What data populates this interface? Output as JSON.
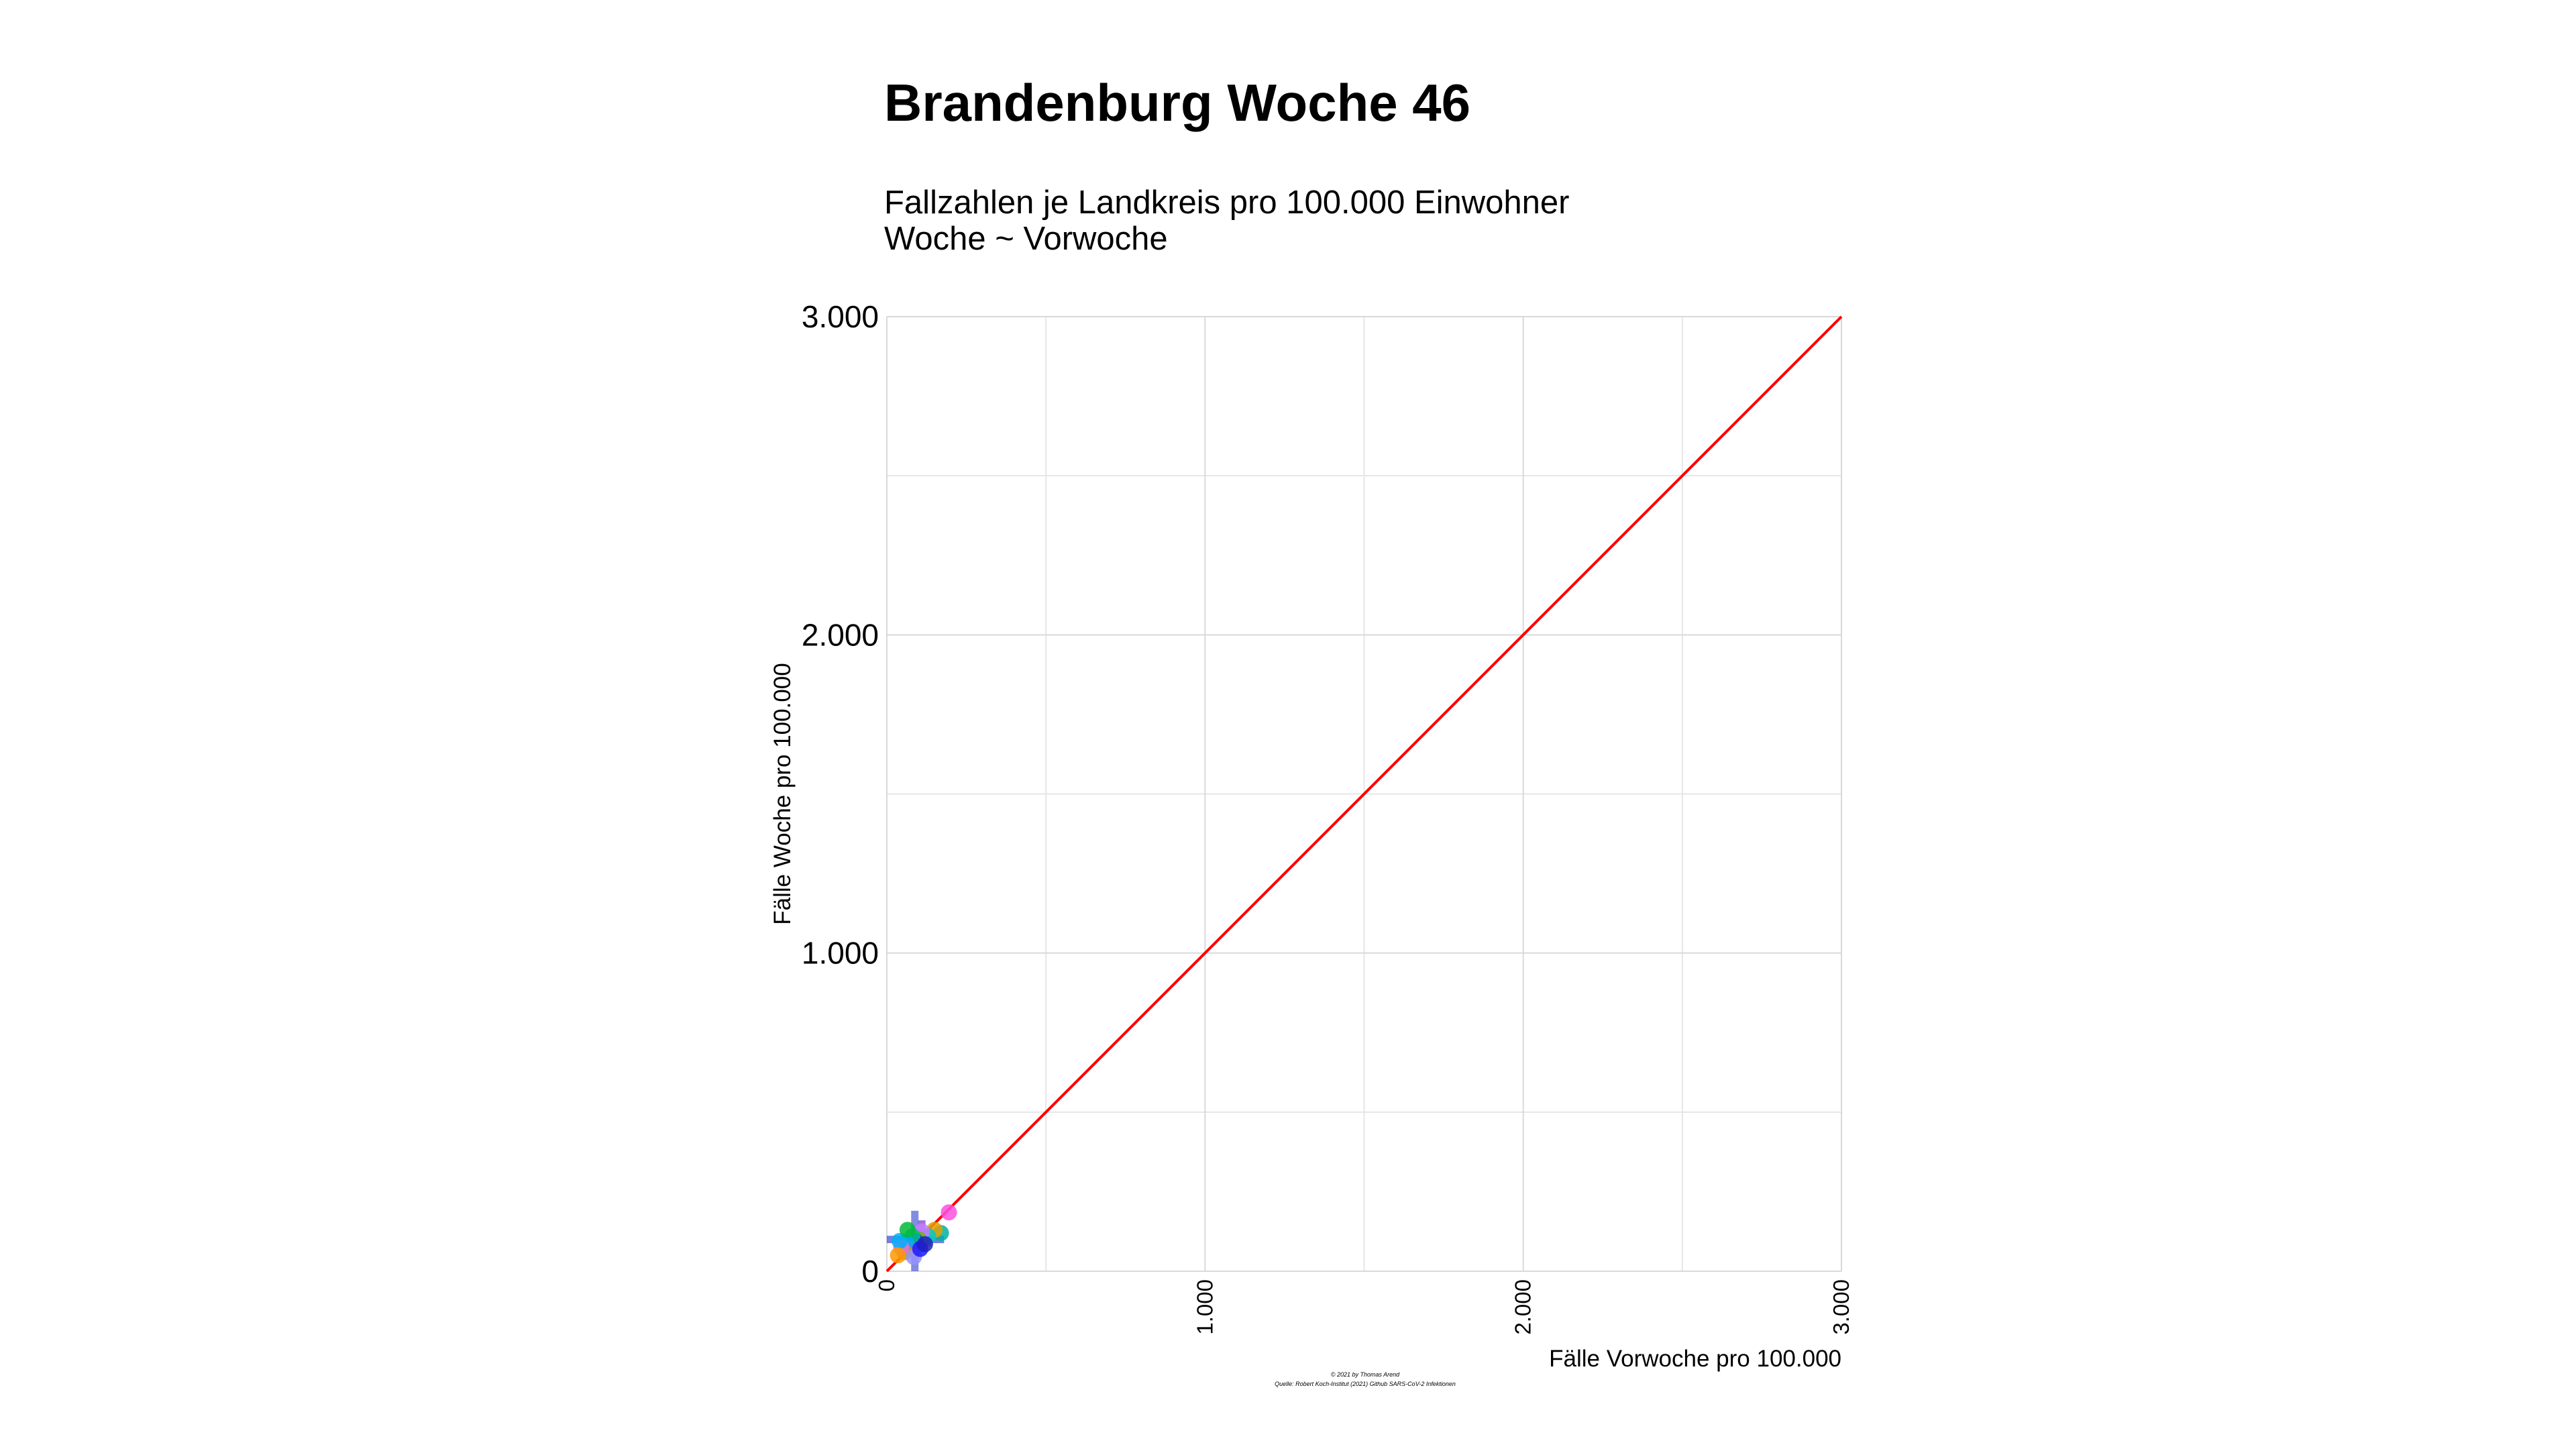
{
  "chart_data": {
    "type": "scatter",
    "title": "Brandenburg Woche 46",
    "subtitle_lines": [
      "Fallzahlen je Landkreis pro 100.000 Einwohner",
      "Woche ~ Vorwoche"
    ],
    "xlabel": "Fälle Vorwoche pro 100.000",
    "ylabel": "Fälle Woche pro 100.000",
    "xlim": [
      0,
      3000
    ],
    "ylim": [
      0,
      3000
    ],
    "x_ticks": [
      {
        "value": 0,
        "label": "0"
      },
      {
        "value": 1000,
        "label": "1.000"
      },
      {
        "value": 2000,
        "label": "2.000"
      },
      {
        "value": 3000,
        "label": "3.000"
      }
    ],
    "y_ticks": [
      {
        "value": 0,
        "label": "0"
      },
      {
        "value": 1000,
        "label": "1.000"
      },
      {
        "value": 2000,
        "label": "2.000"
      },
      {
        "value": 3000,
        "label": "3.000"
      }
    ],
    "minor_grid_values": [
      500,
      1500,
      2500
    ],
    "grid": true,
    "legend": "none",
    "reference_line": {
      "from": [
        0,
        0
      ],
      "to": [
        3000,
        3000
      ],
      "color": "#ff0000"
    },
    "points": [
      {
        "x": 195,
        "y": 185,
        "color": "#ff4fe0"
      },
      {
        "x": 170,
        "y": 120,
        "color": "#00b0a6"
      },
      {
        "x": 150,
        "y": 130,
        "color": "#e6a000"
      },
      {
        "x": 130,
        "y": 110,
        "color": "#00c8c8"
      },
      {
        "x": 110,
        "y": 125,
        "color": "#c77cff"
      },
      {
        "x": 100,
        "y": 100,
        "color": "#7cae00"
      },
      {
        "x": 90,
        "y": 95,
        "color": "#0040ff"
      },
      {
        "x": 80,
        "y": 110,
        "color": "#00bf7d"
      },
      {
        "x": 70,
        "y": 70,
        "color": "#f8766d"
      },
      {
        "x": 60,
        "y": 90,
        "color": "#00a9ff"
      },
      {
        "x": 55,
        "y": 60,
        "color": "#a3a500"
      },
      {
        "x": 45,
        "y": 75,
        "color": "#e76bf3"
      },
      {
        "x": 40,
        "y": 95,
        "color": "#00b0f6"
      },
      {
        "x": 35,
        "y": 50,
        "color": "#ff9900"
      },
      {
        "x": 85,
        "y": 45,
        "color": "#9590ff"
      },
      {
        "x": 105,
        "y": 70,
        "color": "#1a1aff"
      },
      {
        "x": 120,
        "y": 85,
        "color": "#2020c0"
      },
      {
        "x": 65,
        "y": 130,
        "color": "#00ba38"
      }
    ],
    "error_bars": [
      {
        "x": 88,
        "y": 90,
        "x_from": 88,
        "x_to": 88,
        "y_from": 0,
        "y_to": 190,
        "color": "#4050d0"
      },
      {
        "x": 100,
        "y": 100,
        "x_from": 0,
        "x_to": 180,
        "y_from": 100,
        "y_to": 100,
        "color": "#2a3acc"
      },
      {
        "x": 110,
        "y": 120,
        "x_from": 110,
        "x_to": 110,
        "y_from": 60,
        "y_to": 160,
        "color": "#6a2bd0"
      },
      {
        "x": 75,
        "y": 90,
        "x_from": 40,
        "x_to": 140,
        "y_from": 90,
        "y_to": 90,
        "color": "#8a6a10"
      }
    ],
    "caption_lines": [
      "© 2021 by Thomas Arend",
      "Quelle: Robert Koch-Institut (2021) Github SARS-CoV-2 Infektionen"
    ]
  }
}
